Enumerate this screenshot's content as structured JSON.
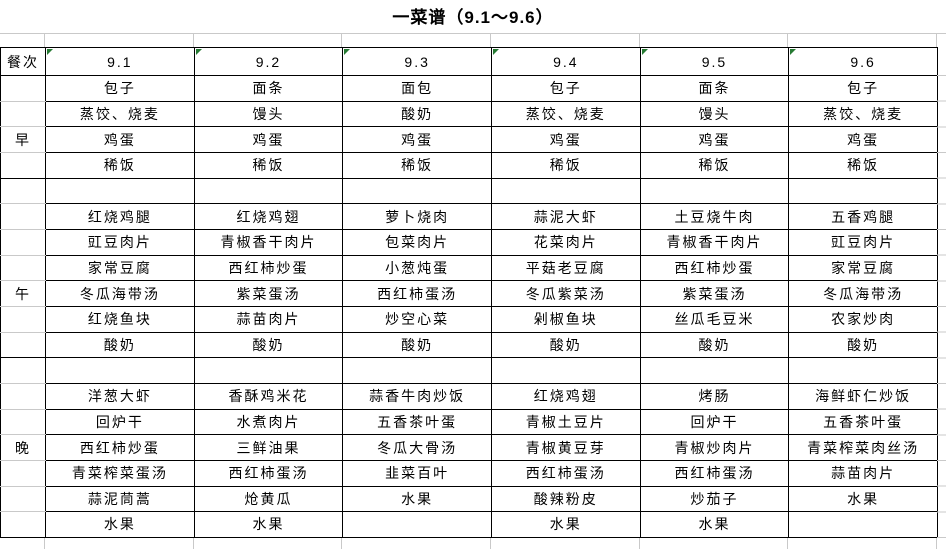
{
  "title": "一菜谱（9.1～9.6）",
  "colors": {
    "indicator_green": "#267a33"
  },
  "table": {
    "corner": "餐次",
    "dates": [
      "9.1",
      "9.2",
      "9.3",
      "9.4",
      "9.5",
      "9.6"
    ],
    "sections": [
      {
        "label": "早",
        "label_row": 2,
        "rows": [
          [
            "包子",
            "面条",
            "面包",
            "包子",
            "面条",
            "包子"
          ],
          [
            "蒸饺、烧麦",
            "馒头",
            "酸奶",
            "蒸饺、烧麦",
            "馒头",
            "蒸饺、烧麦"
          ],
          [
            "鸡蛋",
            "鸡蛋",
            "鸡蛋",
            "鸡蛋",
            "鸡蛋",
            "鸡蛋"
          ],
          [
            "稀饭",
            "稀饭",
            "稀饭",
            "稀饭",
            "稀饭",
            "稀饭"
          ]
        ]
      },
      {
        "label": "午",
        "label_row": 4,
        "rows": [
          [
            "",
            "",
            "",
            "",
            "",
            ""
          ],
          [
            "红烧鸡腿",
            "红烧鸡翅",
            "萝卜烧肉",
            "蒜泥大虾",
            "土豆烧牛肉",
            "五香鸡腿"
          ],
          [
            "豇豆肉片",
            "青椒香干肉片",
            "包菜肉片",
            "花菜肉片",
            "青椒香干肉片",
            "豇豆肉片"
          ],
          [
            "家常豆腐",
            "西红柿炒蛋",
            "小葱炖蛋",
            "平菇老豆腐",
            "西红柿炒蛋",
            "家常豆腐"
          ],
          [
            "冬瓜海带汤",
            "紫菜蛋汤",
            "西红柿蛋汤",
            "冬瓜紫菜汤",
            "紫菜蛋汤",
            "冬瓜海带汤"
          ],
          [
            "红烧鱼块",
            "蒜苗肉片",
            "炒空心菜",
            "剁椒鱼块",
            "丝瓜毛豆米",
            "农家炒肉"
          ],
          [
            "酸奶",
            "酸奶",
            "酸奶",
            "酸奶",
            "酸奶",
            "酸奶"
          ]
        ]
      },
      {
        "label": "晚",
        "label_row": 3,
        "rows": [
          [
            "",
            "",
            "",
            "",
            "",
            ""
          ],
          [
            "洋葱大虾",
            "香酥鸡米花",
            "蒜香牛肉炒饭",
            "红烧鸡翅",
            "烤肠",
            "海鲜虾仁炒饭"
          ],
          [
            "回炉干",
            "水煮肉片",
            "五香茶叶蛋",
            "青椒土豆片",
            "回炉干",
            "五香茶叶蛋"
          ],
          [
            "西红柿炒蛋",
            "三鲜油果",
            "冬瓜大骨汤",
            "青椒黄豆芽",
            "青椒炒肉片",
            "青菜榨菜肉丝汤"
          ],
          [
            "青菜榨菜蛋汤",
            "西红柿蛋汤",
            "韭菜百叶",
            "西红柿蛋汤",
            "西红柿蛋汤",
            "蒜苗肉片"
          ],
          [
            "蒜泥茼蒿",
            "炝黄瓜",
            "水果",
            "酸辣粉皮",
            "炒茄子",
            "水果"
          ],
          [
            "水果",
            "水果",
            "",
            "水果",
            "水果",
            ""
          ]
        ]
      }
    ]
  }
}
